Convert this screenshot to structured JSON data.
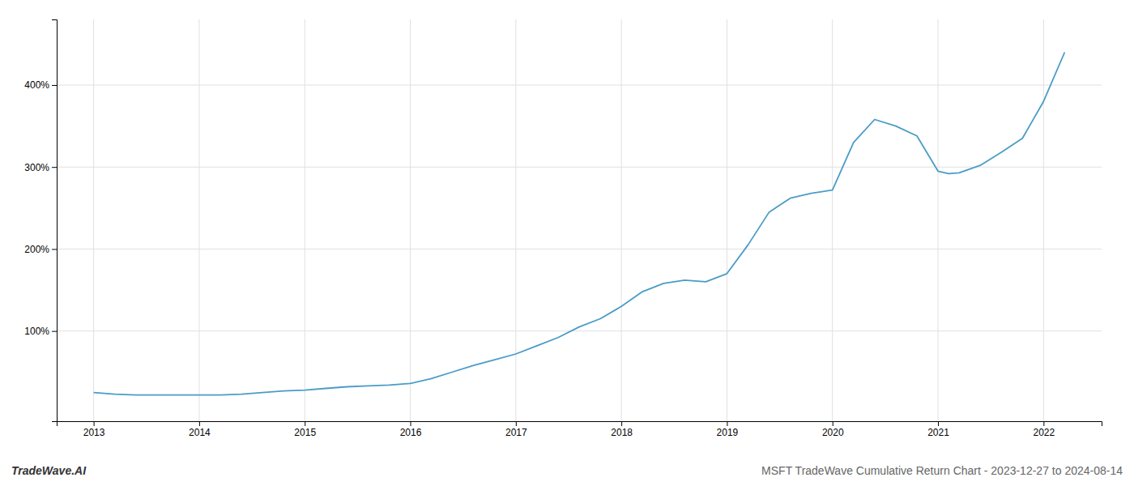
{
  "chart_data": {
    "type": "line",
    "title": "MSFT TradeWave Cumulative Return Chart - 2023-12-27 to 2024-08-14",
    "annotations": [
      "TradeWave.AI"
    ],
    "x": [
      2013.0,
      2013.2,
      2013.4,
      2013.6,
      2013.8,
      2014.0,
      2014.2,
      2014.4,
      2014.6,
      2014.8,
      2015.0,
      2015.2,
      2015.4,
      2015.6,
      2015.8,
      2016.0,
      2016.2,
      2016.4,
      2016.6,
      2016.8,
      2017.0,
      2017.2,
      2017.4,
      2017.6,
      2017.8,
      2018.0,
      2018.2,
      2018.4,
      2018.6,
      2018.8,
      2019.0,
      2019.2,
      2019.4,
      2019.6,
      2019.8,
      2020.0,
      2020.2,
      2020.4,
      2020.6,
      2020.8,
      2021.0,
      2021.1,
      2021.2,
      2021.4,
      2021.6,
      2021.8,
      2022.0,
      2022.2
    ],
    "values": [
      25,
      23,
      22,
      22,
      22,
      22,
      22,
      23,
      25,
      27,
      28,
      30,
      32,
      33,
      34,
      36,
      42,
      50,
      58,
      65,
      72,
      82,
      92,
      105,
      115,
      130,
      148,
      158,
      162,
      160,
      170,
      205,
      245,
      262,
      268,
      272,
      330,
      358,
      350,
      338,
      295,
      292,
      293,
      302,
      318,
      335,
      380,
      440
    ],
    "color": "#4a9cc7",
    "xlim": [
      2012.65,
      2022.55
    ],
    "xticks": [
      2013,
      2014,
      2015,
      2016,
      2017,
      2018,
      2019,
      2020,
      2021,
      2022
    ],
    "ylim": [
      -10,
      480
    ],
    "yticks": [
      {
        "value": 100,
        "label": "100%"
      },
      {
        "value": 200,
        "label": "200%"
      },
      {
        "value": 300,
        "label": "300%"
      },
      {
        "value": 400,
        "label": "400%"
      }
    ],
    "grid": true
  }
}
